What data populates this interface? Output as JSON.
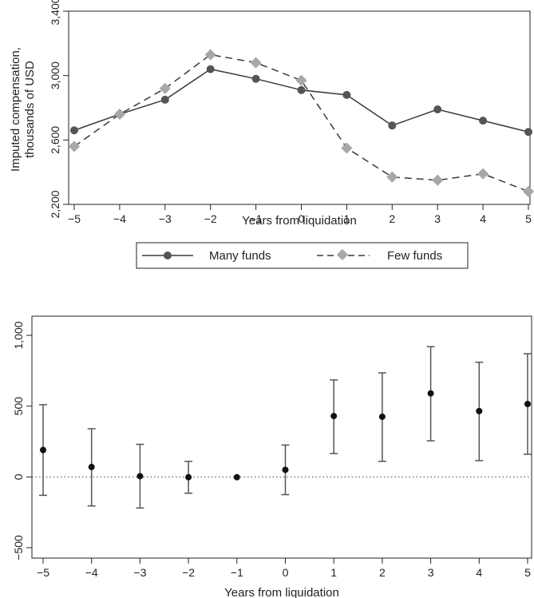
{
  "chart_data": [
    {
      "type": "line",
      "x": [
        -5,
        -4,
        -3,
        -2,
        -1,
        0,
        1,
        2,
        3,
        4,
        5
      ],
      "xlabel": "Years from liquidation",
      "ylabel_lines": [
        "Imputed compensation,",
        "thousands of USD"
      ],
      "xlim": [
        -5,
        5
      ],
      "ylim": [
        2200,
        3400
      ],
      "yticks": [
        2200,
        2600,
        3000,
        3400
      ],
      "ytick_labels": [
        "2,200",
        "2,600",
        "3,000",
        "3,400"
      ],
      "xtick_labels": [
        "−5",
        "−4",
        "−3",
        "−2",
        "−1",
        "0",
        "1",
        "2",
        "3",
        "4",
        "5"
      ],
      "legend_position": "bottom",
      "series": [
        {
          "name": "Many funds",
          "style": "solid",
          "marker": "circle",
          "color": "#3a3a3a",
          "values": [
            2660,
            2760,
            2850,
            3040,
            2980,
            2910,
            2880,
            2690,
            2790,
            2720,
            2650
          ]
        },
        {
          "name": "Few funds",
          "style": "dashed",
          "marker": "diamond",
          "color": "#a8a8a8",
          "values": [
            2560,
            2760,
            2920,
            3130,
            3080,
            2970,
            2550,
            2370,
            2350,
            2390,
            2280
          ]
        }
      ]
    },
    {
      "type": "scatter",
      "subtype": "coefficient-plot",
      "x": [
        -5,
        -4,
        -3,
        -2,
        -1,
        0,
        1,
        2,
        3,
        4,
        5
      ],
      "estimates": [
        190,
        70,
        5,
        -2,
        -2,
        50,
        430,
        425,
        590,
        465,
        515
      ],
      "ci_low": [
        -130,
        -205,
        -220,
        -115,
        -2,
        -125,
        165,
        110,
        255,
        115,
        160
      ],
      "ci_high": [
        510,
        340,
        230,
        110,
        -2,
        225,
        685,
        735,
        920,
        810,
        870
      ],
      "xlabel": "Years from liquidation",
      "xlim": [
        -5,
        5
      ],
      "ylim": [
        -500,
        1000
      ],
      "yticks": [
        -500,
        0,
        500,
        1000
      ],
      "ytick_labels": [
        "−500",
        "0",
        "500",
        "1,000"
      ],
      "xtick_labels": [
        "−5",
        "−4",
        "−3",
        "−2",
        "−1",
        "0",
        "1",
        "2",
        "3",
        "4",
        "5"
      ],
      "reference_line": 0
    }
  ]
}
